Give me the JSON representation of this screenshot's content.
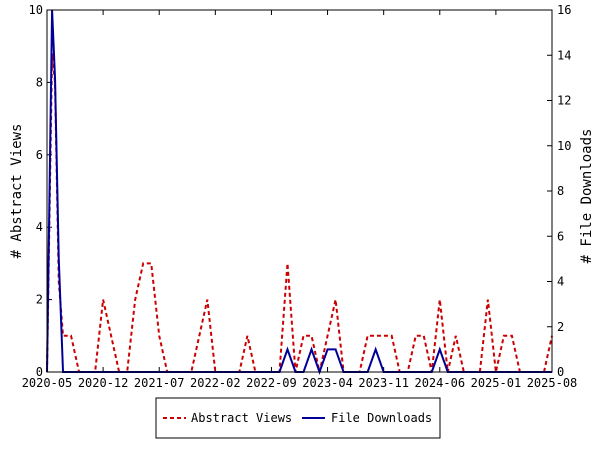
{
  "chart_data": {
    "type": "line",
    "xlabel": "",
    "ylabel_left": "# Abstract Views",
    "ylabel_right": "# File Downloads",
    "x_ticks": [
      "2020-05",
      "2020-12",
      "2021-07",
      "2022-02",
      "2022-09",
      "2023-04",
      "2023-11",
      "2024-06",
      "2025-01",
      "2025-08"
    ],
    "xlim": [
      "2020-05",
      "2025-08"
    ],
    "ylim_left": [
      0,
      10
    ],
    "ylim_right": [
      0,
      16
    ],
    "yticks_left": [
      0,
      2,
      4,
      6,
      8,
      10
    ],
    "yticks_right": [
      0,
      2,
      4,
      6,
      8,
      10,
      12,
      14,
      16
    ],
    "legend_position": "bottom",
    "series": [
      {
        "name": "Abstract Views",
        "axis": "left",
        "color": "#cc0000",
        "style": "dashed",
        "points": [
          [
            "2020-05",
            0
          ],
          [
            "2020-05-20",
            8.8
          ],
          [
            "2020-06",
            8
          ],
          [
            "2020-06-15",
            2.5
          ],
          [
            "2020-07",
            1
          ],
          [
            "2020-08",
            1
          ],
          [
            "2020-09",
            0
          ],
          [
            "2020-10",
            0
          ],
          [
            "2020-11",
            0
          ],
          [
            "2020-12",
            2
          ],
          [
            "2021-01",
            1
          ],
          [
            "2021-02",
            0
          ],
          [
            "2021-03",
            0
          ],
          [
            "2021-04",
            2
          ],
          [
            "2021-05",
            3
          ],
          [
            "2021-06",
            3
          ],
          [
            "2021-07",
            1
          ],
          [
            "2021-08",
            0
          ],
          [
            "2021-09",
            0
          ],
          [
            "2021-10",
            0
          ],
          [
            "2021-11",
            0
          ],
          [
            "2021-12",
            1
          ],
          [
            "2022-01",
            2
          ],
          [
            "2022-02",
            0
          ],
          [
            "2022-03",
            0
          ],
          [
            "2022-04",
            0
          ],
          [
            "2022-05",
            0
          ],
          [
            "2022-06",
            1
          ],
          [
            "2022-07",
            0
          ],
          [
            "2022-08",
            0
          ],
          [
            "2022-09",
            0
          ],
          [
            "2022-10",
            0
          ],
          [
            "2022-11",
            3
          ],
          [
            "2022-12",
            0
          ],
          [
            "2023-01",
            1
          ],
          [
            "2023-02",
            1
          ],
          [
            "2023-03",
            0
          ],
          [
            "2023-04",
            1
          ],
          [
            "2023-05",
            2
          ],
          [
            "2023-06",
            0
          ],
          [
            "2023-07",
            0
          ],
          [
            "2023-08",
            0
          ],
          [
            "2023-09",
            1
          ],
          [
            "2023-10",
            1
          ],
          [
            "2023-11",
            1
          ],
          [
            "2023-12",
            1
          ],
          [
            "2024-01",
            0
          ],
          [
            "2024-02",
            0
          ],
          [
            "2024-03",
            1
          ],
          [
            "2024-04",
            1
          ],
          [
            "2024-05",
            0
          ],
          [
            "2024-06",
            2
          ],
          [
            "2024-07",
            0
          ],
          [
            "2024-08",
            1
          ],
          [
            "2024-09",
            0
          ],
          [
            "2024-10",
            0
          ],
          [
            "2024-11",
            0
          ],
          [
            "2024-12",
            2
          ],
          [
            "2025-01",
            0
          ],
          [
            "2025-02",
            1
          ],
          [
            "2025-03",
            1
          ],
          [
            "2025-04",
            0
          ],
          [
            "2025-05",
            0
          ],
          [
            "2025-06",
            0
          ],
          [
            "2025-07",
            0
          ],
          [
            "2025-08",
            1
          ]
        ]
      },
      {
        "name": "File Downloads",
        "axis": "right",
        "color": "#000099",
        "style": "solid",
        "points": [
          [
            "2020-05",
            0
          ],
          [
            "2020-05-20",
            16
          ],
          [
            "2020-06",
            13
          ],
          [
            "2020-06-15",
            5
          ],
          [
            "2020-07",
            0
          ],
          [
            "2020-08",
            0
          ],
          [
            "2020-09",
            0
          ],
          [
            "2020-10",
            0
          ],
          [
            "2020-11",
            0
          ],
          [
            "2020-12",
            0
          ],
          [
            "2021-01",
            0
          ],
          [
            "2021-02",
            0
          ],
          [
            "2021-03",
            0
          ],
          [
            "2021-04",
            0
          ],
          [
            "2021-05",
            0
          ],
          [
            "2021-06",
            0
          ],
          [
            "2021-07",
            0
          ],
          [
            "2021-08",
            0
          ],
          [
            "2021-09",
            0
          ],
          [
            "2021-10",
            0
          ],
          [
            "2021-11",
            0
          ],
          [
            "2021-12",
            0
          ],
          [
            "2022-01",
            0
          ],
          [
            "2022-02",
            0
          ],
          [
            "2022-03",
            0
          ],
          [
            "2022-04",
            0
          ],
          [
            "2022-05",
            0
          ],
          [
            "2022-06",
            0
          ],
          [
            "2022-07",
            0
          ],
          [
            "2022-08",
            0
          ],
          [
            "2022-09",
            0
          ],
          [
            "2022-10",
            0
          ],
          [
            "2022-11",
            1
          ],
          [
            "2022-12",
            0
          ],
          [
            "2023-01",
            0
          ],
          [
            "2023-02",
            1
          ],
          [
            "2023-03",
            0
          ],
          [
            "2023-04",
            1
          ],
          [
            "2023-05",
            1
          ],
          [
            "2023-06",
            0
          ],
          [
            "2023-07",
            0
          ],
          [
            "2023-08",
            0
          ],
          [
            "2023-09",
            0
          ],
          [
            "2023-10",
            1
          ],
          [
            "2023-11",
            0
          ],
          [
            "2023-12",
            0
          ],
          [
            "2024-01",
            0
          ],
          [
            "2024-02",
            0
          ],
          [
            "2024-03",
            0
          ],
          [
            "2024-04",
            0
          ],
          [
            "2024-05",
            0
          ],
          [
            "2024-06",
            1
          ],
          [
            "2024-07",
            0
          ],
          [
            "2024-08",
            0
          ],
          [
            "2024-09",
            0
          ],
          [
            "2024-10",
            0
          ],
          [
            "2024-11",
            0
          ],
          [
            "2024-12",
            0
          ],
          [
            "2025-01",
            0
          ],
          [
            "2025-02",
            0
          ],
          [
            "2025-03",
            0
          ],
          [
            "2025-04",
            0
          ],
          [
            "2025-05",
            0
          ],
          [
            "2025-06",
            0
          ],
          [
            "2025-07",
            0
          ],
          [
            "2025-08",
            0
          ]
        ]
      }
    ]
  }
}
